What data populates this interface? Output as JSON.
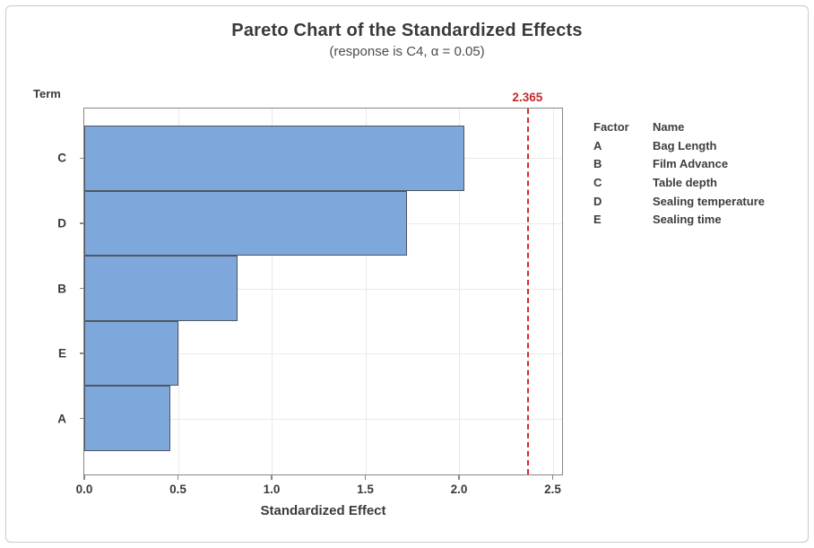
{
  "chart_data": {
    "type": "bar",
    "orientation": "horizontal",
    "title": "Pareto Chart of the Standardized Effects",
    "subtitle": "(response is C4, α = 0.05)",
    "y_axis_label": "Term",
    "x_axis_label": "Standardized Effect",
    "categories": [
      "C",
      "D",
      "B",
      "E",
      "A"
    ],
    "values": [
      2.03,
      1.72,
      0.82,
      0.5,
      0.46
    ],
    "x_ticks": [
      0.0,
      0.5,
      1.0,
      1.5,
      2.0,
      2.5
    ],
    "x_tick_labels": [
      "0.0",
      "0.5",
      "1.0",
      "1.5",
      "2.0",
      "2.5"
    ],
    "xlim": [
      0,
      2.55
    ],
    "grid": true,
    "legend_position": "right",
    "reference_line": {
      "value": 2.365,
      "label": "2.365",
      "style": "dashed",
      "color": "#d12b2b"
    },
    "colors": {
      "bar_fill": "#7ea7db",
      "bar_edge": "#50575f",
      "frame": "#878787",
      "gridline": "#e9e9e9",
      "reference": "#d12b2b",
      "text": "#3b3b3b"
    }
  },
  "legend": {
    "headers": [
      "Factor",
      "Name"
    ],
    "rows": [
      {
        "factor": "A",
        "name": "Bag Length"
      },
      {
        "factor": "B",
        "name": "Film Advance"
      },
      {
        "factor": "C",
        "name": "Table depth"
      },
      {
        "factor": "D",
        "name": "Sealing temperature"
      },
      {
        "factor": "E",
        "name": "Sealing time"
      }
    ]
  }
}
